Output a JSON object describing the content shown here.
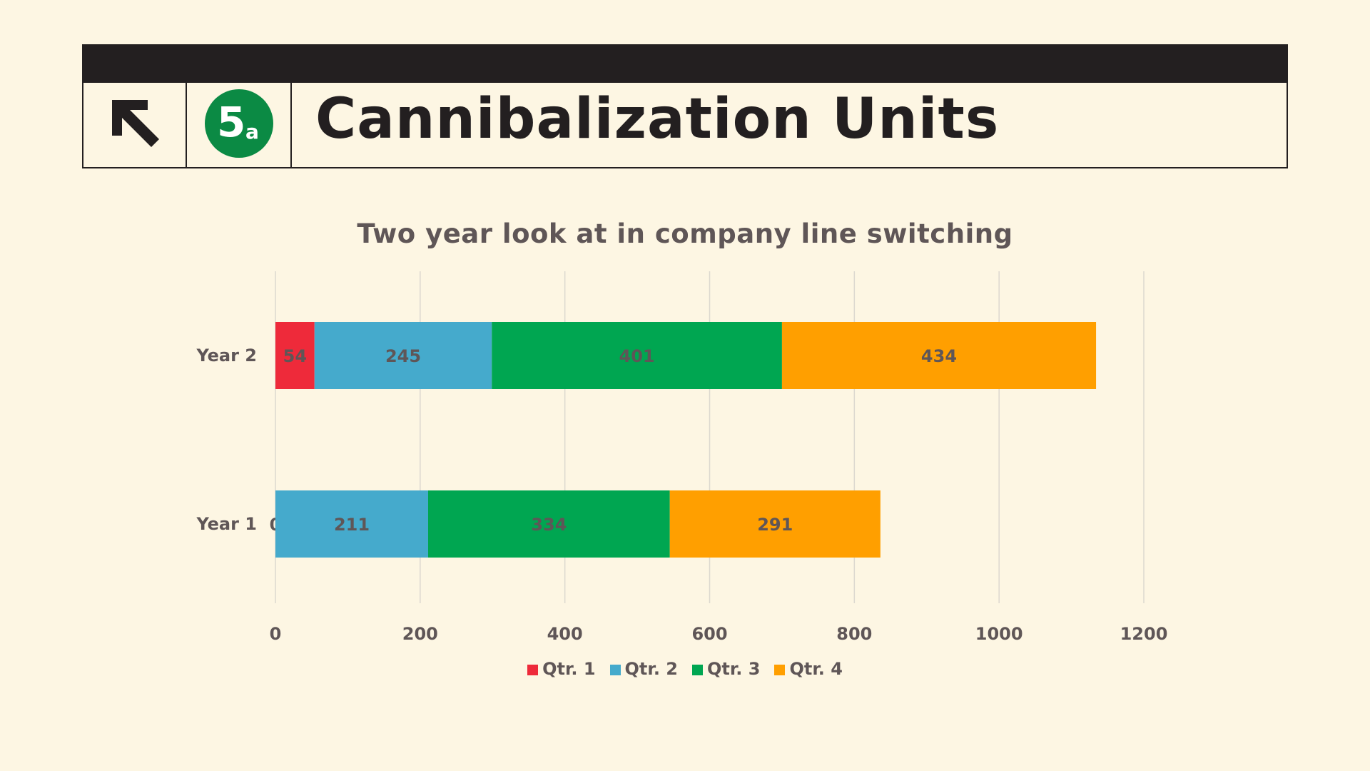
{
  "header": {
    "title": "Cannibalization Units",
    "badge_number": "5",
    "badge_suffix": "a",
    "badge_color": "#0b8a44",
    "arrow_icon": "arrow-up-left-icon"
  },
  "chart_data": {
    "type": "bar",
    "orientation": "horizontal",
    "stacked": true,
    "title": "Two year look at in company line switching",
    "categories": [
      "Year 2",
      "Year 1"
    ],
    "series": [
      {
        "name": "Qtr. 1",
        "color": "#ee2a3a",
        "values": [
          54,
          0
        ]
      },
      {
        "name": "Qtr. 2",
        "color": "#45aacc",
        "values": [
          245,
          211
        ]
      },
      {
        "name": "Qtr. 3",
        "color": "#00a651",
        "values": [
          401,
          334
        ]
      },
      {
        "name": "Qtr. 4",
        "color": "#ff9f00",
        "values": [
          434,
          291
        ]
      }
    ],
    "xlim": [
      0,
      1200
    ],
    "xticks": [
      0,
      200,
      400,
      600,
      800,
      1000,
      1200
    ],
    "grid": true,
    "legend": "bottom",
    "data_labels": true
  }
}
